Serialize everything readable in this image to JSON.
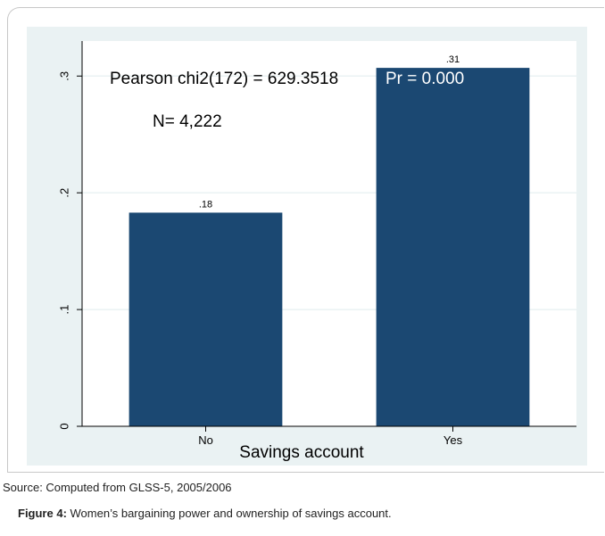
{
  "chart_data": {
    "type": "bar",
    "categories": [
      "No",
      "Yes"
    ],
    "values": [
      0.183,
      0.307
    ],
    "bar_labels": [
      ".18",
      ".31"
    ],
    "xlabel": "Savings account",
    "ylabel": "",
    "ylim": [
      0,
      0.33
    ],
    "yticks": [
      0,
      0.1,
      0.2,
      0.3
    ],
    "ytick_labels": [
      "0",
      ".1",
      ".2",
      ".3"
    ],
    "annotations": [
      "Pearson chi2(172) = 629.3518",
      "Pr = 0.000",
      "N= 4,222"
    ],
    "grid": true,
    "colors": {
      "bar": "#1b4872",
      "plot_bg": "#ffffff",
      "outer_bg": "#eaf2f3",
      "grid": "#eaf2f3"
    }
  },
  "source_note": "Source: Computed from GLSS-5, 2005/2006",
  "caption": {
    "label": "Figure 4:",
    "text": " Women’s bargaining power and ownership of savings account."
  }
}
